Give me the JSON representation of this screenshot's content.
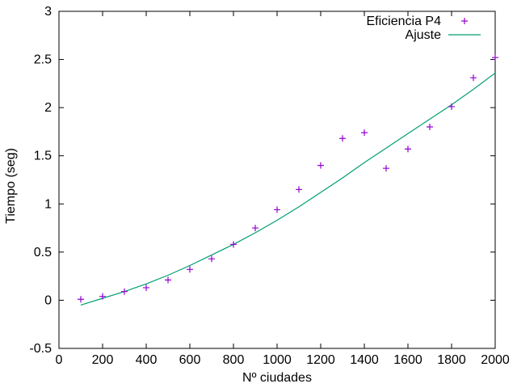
{
  "chart_data": {
    "type": "scatter",
    "xlabel": "Nº ciudades",
    "ylabel": "Tiempo (seg)",
    "xlim": [
      0,
      2000
    ],
    "ylim": [
      -0.5,
      3
    ],
    "xticks": [
      0,
      200,
      400,
      600,
      800,
      1000,
      1200,
      1400,
      1600,
      1800,
      2000
    ],
    "yticks": [
      -0.5,
      0,
      0.5,
      1,
      1.5,
      2,
      2.5,
      3
    ],
    "ytick_labels": [
      "-0.5",
      "0",
      "0.5",
      "1",
      "1.5",
      "2",
      "2.5",
      "3"
    ],
    "grid": false,
    "legend_position": "top-right",
    "series": [
      {
        "name": "Eficiencia P4",
        "kind": "points",
        "marker": "plus",
        "color": "#9400d3",
        "x": [
          100,
          200,
          300,
          400,
          500,
          600,
          700,
          800,
          900,
          1000,
          1100,
          1200,
          1300,
          1400,
          1500,
          1600,
          1700,
          1800,
          1900,
          2000
        ],
        "y": [
          0.01,
          0.04,
          0.09,
          0.13,
          0.21,
          0.32,
          0.43,
          0.58,
          0.75,
          0.94,
          1.15,
          1.4,
          1.68,
          1.74,
          1.37,
          1.57,
          1.8,
          2.01,
          2.31,
          2.52
        ]
      },
      {
        "name": "Ajuste",
        "kind": "line",
        "color": "#009e73",
        "x": [
          100,
          200,
          300,
          400,
          500,
          600,
          700,
          800,
          900,
          1000,
          1100,
          1200,
          1300,
          1400,
          1500,
          1600,
          1700,
          1800,
          1900,
          2000
        ],
        "y": [
          -0.05,
          0.02,
          0.09,
          0.17,
          0.26,
          0.36,
          0.47,
          0.58,
          0.7,
          0.83,
          0.97,
          1.12,
          1.27,
          1.43,
          1.58,
          1.73,
          1.88,
          2.03,
          2.19,
          2.36
        ]
      }
    ]
  }
}
